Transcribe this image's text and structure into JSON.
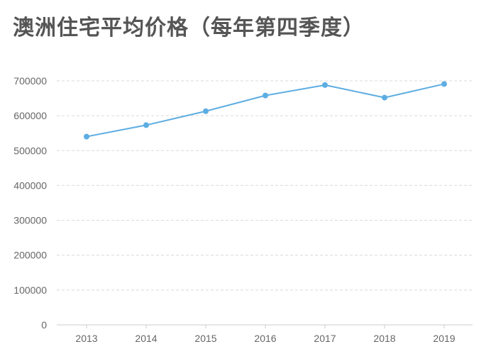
{
  "chart_data": {
    "type": "line",
    "title": "澳洲住宅平均价格（每年第四季度）",
    "xlabel": "",
    "ylabel": "",
    "categories": [
      "2013",
      "2014",
      "2015",
      "2016",
      "2017",
      "2018",
      "2019"
    ],
    "series": [
      {
        "values": [
          540000,
          573000,
          613000,
          658000,
          688000,
          652000,
          691000
        ],
        "color": "#5dade2"
      }
    ],
    "ylim": [
      0,
      700000
    ],
    "yticks": [
      0,
      100000,
      200000,
      300000,
      400000,
      500000,
      600000,
      700000
    ],
    "ytick_labels": [
      "0",
      "100000",
      "200000",
      "300000",
      "400000",
      "500000",
      "600000",
      "700000"
    ],
    "grid": true,
    "grid_style": "dashed",
    "legend": "none",
    "colors": {
      "line": "#5dade2",
      "grid": "#d9d9d9",
      "axis": "#cccccc",
      "title": "#555555",
      "tick_text": "#666666"
    }
  }
}
